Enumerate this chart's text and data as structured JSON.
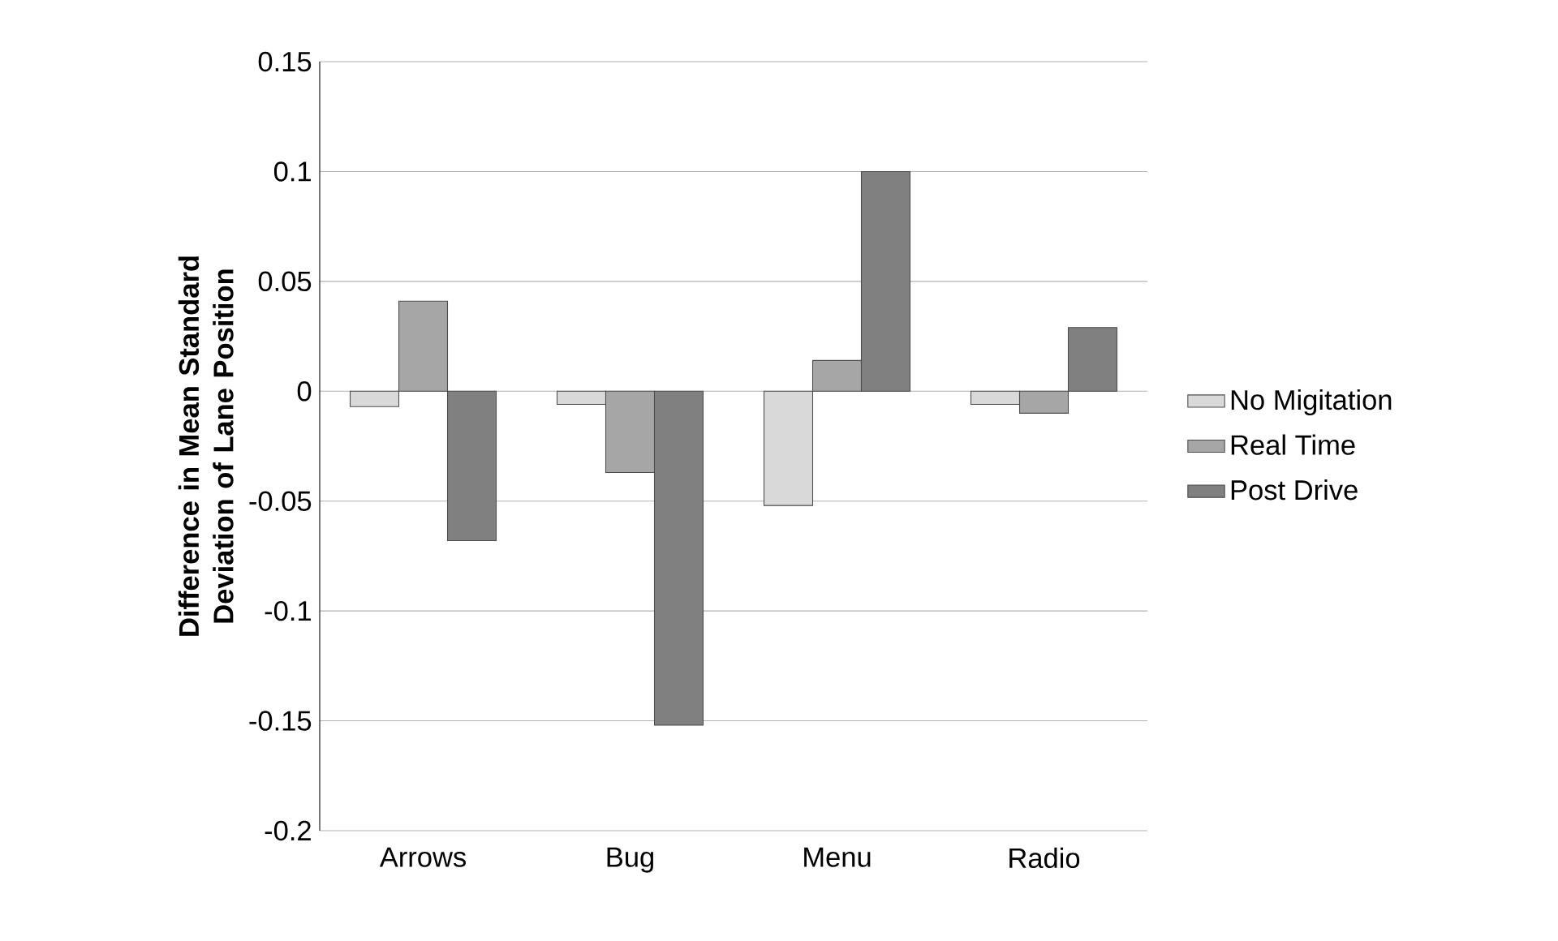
{
  "chart_data": {
    "type": "bar",
    "ylabel": "Difference in Mean Standard Deviation of Lane Position",
    "categories": [
      "Arrows",
      "Bug",
      "Menu",
      "Radio"
    ],
    "series": [
      {
        "name": "No Migitation",
        "color": "#d9d9d9",
        "values": [
          -0.007,
          -0.006,
          -0.052,
          -0.006
        ]
      },
      {
        "name": "Real Time",
        "color": "#a6a6a6",
        "values": [
          0.041,
          -0.037,
          0.014,
          -0.01
        ]
      },
      {
        "name": "Post Drive",
        "color": "#808080",
        "values": [
          -0.068,
          -0.152,
          0.1,
          0.029
        ]
      }
    ],
    "ylim": [
      -0.2,
      0.15
    ],
    "yticks": [
      0.15,
      0.1,
      0.05,
      0,
      -0.05,
      -0.1,
      -0.15,
      -0.2
    ],
    "grid": "y",
    "legend": "right"
  }
}
